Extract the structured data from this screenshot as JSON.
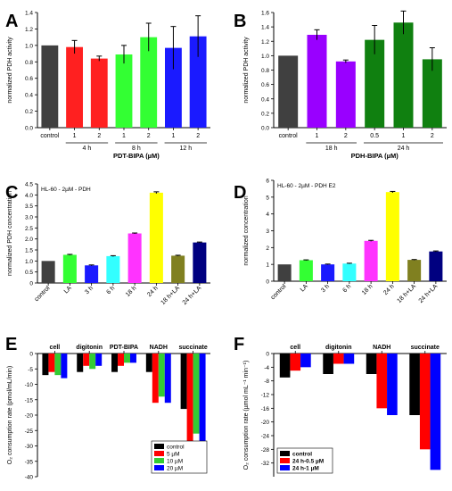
{
  "chart_data": [
    {
      "panel": "A",
      "type": "bar",
      "ylabel": "normalized PDH activity",
      "xlabel": "PDT-BIPA (µM)",
      "ylim": [
        0,
        1.4
      ],
      "yticks": [
        0,
        0.2,
        0.4,
        0.6,
        0.8,
        1.0,
        1.2,
        1.4
      ],
      "ytick_labels": [
        "0.0",
        "0.2",
        "0.4",
        "0.6",
        "0.8",
        "1.0",
        "1.2",
        "1.4"
      ],
      "categories": [
        "control",
        "1",
        "2",
        "1",
        "2",
        "1",
        "2"
      ],
      "groups": [
        {
          "label": "4 h",
          "from": 1,
          "to": 2
        },
        {
          "label": "8 h",
          "from": 3,
          "to": 4
        },
        {
          "label": "12 h",
          "from": 5,
          "to": 6
        }
      ],
      "values": [
        1.0,
        0.98,
        0.84,
        0.89,
        1.1,
        0.97,
        1.11
      ],
      "errors": [
        0,
        0.08,
        0.03,
        0.11,
        0.17,
        0.26,
        0.25
      ],
      "colors": [
        "#404040",
        "#ff2020",
        "#ff2020",
        "#33ff33",
        "#33ff33",
        "#1a1aff",
        "#1a1aff"
      ]
    },
    {
      "panel": "B",
      "type": "bar",
      "ylabel": "normalized PDH activity",
      "xlabel": "PDH-BIPA (µM)",
      "ylim": [
        0,
        1.6
      ],
      "yticks": [
        0,
        0.2,
        0.4,
        0.6,
        0.8,
        1.0,
        1.2,
        1.4,
        1.6
      ],
      "ytick_labels": [
        "0.0",
        "0.2",
        "0.4",
        "0.6",
        "0.8",
        "1.0",
        "1.2",
        "1.4",
        "1.6"
      ],
      "categories": [
        "control",
        "1",
        "2",
        "0.5",
        "1",
        "2"
      ],
      "groups": [
        {
          "label": "18 h",
          "from": 1,
          "to": 2
        },
        {
          "label": "24 h",
          "from": 3,
          "to": 5
        }
      ],
      "values": [
        1.0,
        1.29,
        0.92,
        1.22,
        1.46,
        0.95
      ],
      "errors": [
        0,
        0.07,
        0.02,
        0.2,
        0.16,
        0.16
      ],
      "colors": [
        "#404040",
        "#9900ff",
        "#9900ff",
        "#108010",
        "#108010",
        "#108010"
      ]
    },
    {
      "panel": "C",
      "type": "bar",
      "subtitle": "HL-60 - 2µM - PDH",
      "ylabel": "normalized PDH concentration",
      "ylim": [
        0,
        4.5
      ],
      "yticks": [
        0,
        0.5,
        1.0,
        1.5,
        2.0,
        2.5,
        3.0,
        3.5,
        4.0,
        4.5
      ],
      "ytick_labels": [
        "0",
        "0.5",
        "1.0",
        "1.5",
        "2.0",
        "2.5",
        "3.0",
        "3.5",
        "4.0",
        "4.5"
      ],
      "categories": [
        "control",
        "LA",
        "3 h",
        "6 h",
        "18 h",
        "24 h",
        "18 h+LA",
        "24 h+LA"
      ],
      "values": [
        1.0,
        1.28,
        0.8,
        1.22,
        2.25,
        4.1,
        1.24,
        1.84
      ],
      "errors": [
        0,
        0.02,
        0.02,
        0.02,
        0.02,
        0.04,
        0.02,
        0.02
      ],
      "colors": [
        "#404040",
        "#33ff33",
        "#1a1aff",
        "#33ffff",
        "#ff33ff",
        "#ffff00",
        "#808020",
        "#000080"
      ]
    },
    {
      "panel": "D",
      "type": "bar",
      "subtitle": "HL-60 - 2µM - PDH E2",
      "ylabel": "normalized concentration",
      "ylim": [
        0,
        6
      ],
      "yticks": [
        0,
        1,
        2,
        3,
        4,
        5,
        6
      ],
      "ytick_labels": [
        "0",
        "1",
        "2",
        "3",
        "4",
        "5",
        "6"
      ],
      "categories": [
        "control",
        "LA",
        "3 h",
        "6 h",
        "18 h",
        "24 h",
        "18 h+LA",
        "24 h+LA"
      ],
      "values": [
        1.0,
        1.25,
        1.0,
        1.05,
        2.4,
        5.3,
        1.27,
        1.77
      ],
      "errors": [
        0,
        0.02,
        0.02,
        0.02,
        0.03,
        0.04,
        0.02,
        0.03
      ],
      "colors": [
        "#404040",
        "#33ff33",
        "#1a1aff",
        "#33ffff",
        "#ff33ff",
        "#ffff00",
        "#808020",
        "#000080"
      ]
    },
    {
      "panel": "E",
      "type": "bar",
      "ylabel": "O₂ consumption rate (pmol/mL/min)",
      "ylim": [
        -40,
        0
      ],
      "yticks": [
        0,
        -5,
        -10,
        -15,
        -20,
        -25,
        -30,
        -35,
        -40
      ],
      "ytick_labels": [
        "0",
        "-5",
        "-10",
        "-15",
        "-20",
        "-25",
        "-30",
        "-35",
        "-40"
      ],
      "categories": [
        "cell",
        "digitonin",
        "PDT-BIPA",
        "NADH",
        "succinate"
      ],
      "series": [
        {
          "name": "control",
          "values": [
            -7,
            -6,
            -6,
            -6,
            -18
          ],
          "color": "#000000"
        },
        {
          "name": "5 µM",
          "values": [
            -6,
            -4,
            -4,
            -16,
            -34
          ],
          "color": "#ff0000"
        },
        {
          "name": "10 µM",
          "values": [
            -7,
            -5,
            -3,
            -14,
            -26
          ],
          "color": "#33cc33"
        },
        {
          "name": "20 µM",
          "values": [
            -8,
            -4,
            -3,
            -16,
            -38
          ],
          "color": "#0000ff"
        }
      ],
      "legend": "bottom-right"
    },
    {
      "panel": "F",
      "type": "bar",
      "ylabel": "O₂ consumption rate (µmol mL⁻¹ min⁻¹)",
      "ylim": [
        -36,
        0
      ],
      "yticks": [
        0,
        -4,
        -8,
        -12,
        -16,
        -20,
        -24,
        -28,
        -32
      ],
      "ytick_labels": [
        "0",
        "-4",
        "-8",
        "-12",
        "-16",
        "-20",
        "-24",
        "-28",
        "-32"
      ],
      "categories": [
        "cell",
        "digitonin",
        "NADH",
        "succinate"
      ],
      "series": [
        {
          "name": "control",
          "values": [
            -7,
            -6,
            -6,
            -18
          ],
          "color": "#000000"
        },
        {
          "name": "24 h-0.5 µM",
          "values": [
            -5,
            -3,
            -16,
            -28
          ],
          "color": "#ff0000"
        },
        {
          "name": "24 h-1 µM",
          "values": [
            -4,
            -3,
            -18,
            -34
          ],
          "color": "#0000ff"
        }
      ],
      "legend": "bottom-left"
    }
  ]
}
